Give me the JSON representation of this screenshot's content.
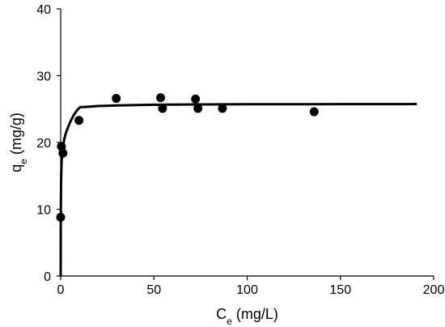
{
  "chart_data": {
    "type": "scatter",
    "xlabel": {
      "base": "C",
      "sub": "e",
      "unit": " (mg/L)"
    },
    "ylabel": {
      "base": "q",
      "sub": "e",
      "unit": " (mg/g)"
    },
    "xlim": [
      0,
      200
    ],
    "ylim": [
      0,
      40
    ],
    "xticks": [
      0,
      50,
      100,
      150,
      200
    ],
    "yticks": [
      0,
      10,
      20,
      30,
      40
    ],
    "grid": false,
    "series": [
      {
        "kind": "scatter",
        "x": [
          0.0,
          0.4,
          1.2,
          9.8,
          29.8,
          53.6,
          54.6,
          72.3,
          73.6,
          86.7,
          135.9
        ],
        "y": [
          8.8,
          19.4,
          18.4,
          23.3,
          26.6,
          26.7,
          25.1,
          26.5,
          25.1,
          25.1,
          24.6
        ]
      },
      {
        "kind": "line",
        "x": [
          0.0,
          0.05,
          0.2,
          0.5,
          1,
          2,
          3,
          5,
          7,
          9,
          10.5,
          12,
          15,
          20,
          30,
          50,
          75,
          100,
          150,
          191
        ],
        "y": [
          0.0,
          8.5,
          14.0,
          17.2,
          19.0,
          20.6,
          21.6,
          23.0,
          24.1,
          24.9,
          25.3,
          25.3,
          25.35,
          25.45,
          25.55,
          25.65,
          25.7,
          25.72,
          25.74,
          25.75
        ]
      }
    ]
  }
}
